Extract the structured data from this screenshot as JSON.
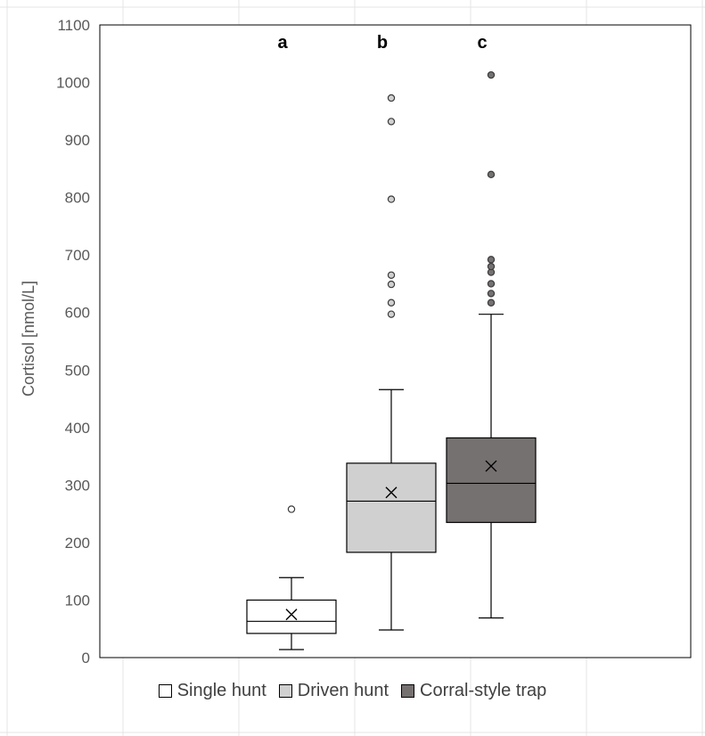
{
  "chart_data": {
    "type": "boxplot",
    "ylabel": "Cortisol [nmol/L]",
    "xlabel": "",
    "ylim": [
      0,
      1100
    ],
    "yticks": [
      0,
      100,
      200,
      300,
      400,
      500,
      600,
      700,
      800,
      900,
      1000,
      1100
    ],
    "grid": false,
    "legend_position": "bottom",
    "series": [
      {
        "name": "Single hunt",
        "color": "#ffffff",
        "outlier_color": "#ffffff",
        "letter": "a",
        "whisker_low": 14,
        "q1": 42,
        "median": 63,
        "q3": 100,
        "whisker_high": 139,
        "mean": 75,
        "outliers": [
          258
        ]
      },
      {
        "name": "Driven hunt",
        "color": "#d0d0d0",
        "outlier_color": "#d0d0d0",
        "letter": "b",
        "whisker_low": 48,
        "q1": 183,
        "median": 272,
        "q3": 338,
        "whisker_high": 466,
        "mean": 287,
        "outliers": [
          597,
          617,
          649,
          665,
          797,
          932,
          973
        ]
      },
      {
        "name": "Corral-style trap",
        "color": "#767171",
        "outlier_color": "#767171",
        "letter": "c",
        "whisker_low": 69,
        "q1": 235,
        "median": 303,
        "q3": 382,
        "whisker_high": 597,
        "mean": 333,
        "outliers": [
          617,
          633,
          650,
          670,
          680,
          692,
          840,
          1013
        ]
      }
    ]
  }
}
